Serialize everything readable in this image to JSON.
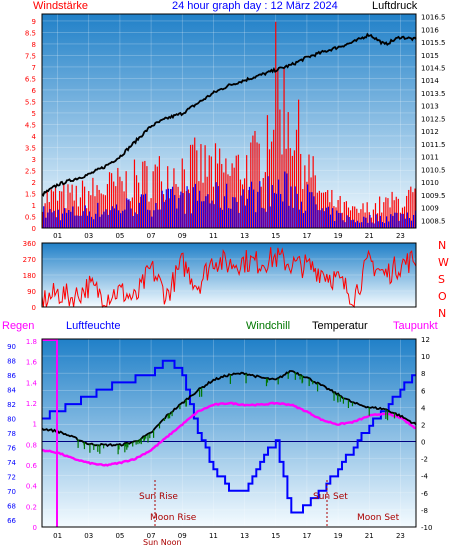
{
  "header": {
    "left_label": "Windstärke",
    "title": "24 hour graph day : 12 März 2024",
    "right_label": "Luftdruck"
  },
  "colors": {
    "red": "#ff0000",
    "blue": "#0000ff",
    "black": "#000000",
    "magenta": "#ff00ff",
    "green": "#007700",
    "plot_top": "#2080c8",
    "plot_bottom": "#f4fbff"
  },
  "labels": {
    "regen": "Regen",
    "luftfeuchte": "Luftfeuchte",
    "windchill": "Windchill",
    "temperatur": "Temperatur",
    "taupunkt": "Taupunkt",
    "sun_rise": "Sun Rise",
    "sun_set": "Sun Set",
    "moon_rise": "Moon Rise",
    "moon_set": "Moon Set",
    "sun_noon": "Sun Noon",
    "compass": [
      "N",
      "W",
      "S",
      "O",
      "N"
    ]
  },
  "chart_data": [
    {
      "type": "bar",
      "name": "wind",
      "y_left_ticks": [
        "0",
        "0.5",
        "1",
        "1.5",
        "2",
        "2.5",
        "3",
        "3.5",
        "4",
        "4.5",
        "5",
        "5.5",
        "6",
        "6.5",
        "7",
        "7.5",
        "8",
        "8.5",
        "9"
      ],
      "y_right_ticks": [
        "1008.5",
        "1009",
        "1009.5",
        "1010",
        "1010.5",
        "1011",
        "1011.5",
        "1012",
        "1012.5",
        "1013",
        "1013.5",
        "1014",
        "1014.5",
        "1015",
        "1015.5",
        "1016",
        "1016.5"
      ],
      "x_ticks": [
        "01",
        "03",
        "05",
        "07",
        "09",
        "11",
        "13",
        "15",
        "17",
        "19",
        "21",
        "23"
      ],
      "ylim": [
        0,
        9.3
      ],
      "y2lim": [
        1008.2,
        1016.6
      ],
      "gust_profile": [
        [
          0,
          2
        ],
        [
          2,
          2
        ],
        [
          4,
          2.5
        ],
        [
          6,
          3
        ],
        [
          8,
          3.5
        ],
        [
          10,
          4
        ],
        [
          12,
          3.5
        ],
        [
          14,
          4.5
        ],
        [
          15,
          9
        ],
        [
          16,
          7
        ],
        [
          17,
          4
        ],
        [
          18,
          2
        ],
        [
          19,
          1.5
        ],
        [
          20,
          1
        ],
        [
          22,
          1.5
        ],
        [
          24,
          2
        ]
      ],
      "mean_profile": [
        [
          0,
          1
        ],
        [
          2,
          1
        ],
        [
          4,
          1.2
        ],
        [
          6,
          1.5
        ],
        [
          8,
          1.8
        ],
        [
          10,
          2
        ],
        [
          12,
          2
        ],
        [
          14,
          2.2
        ],
        [
          15,
          2.5
        ],
        [
          16,
          2.5
        ],
        [
          17,
          2
        ],
        [
          18,
          1
        ],
        [
          19,
          0.8
        ],
        [
          20,
          0.5
        ],
        [
          22,
          0.7
        ],
        [
          24,
          1
        ]
      ],
      "pressure_profile": [
        [
          0,
          1009.5
        ],
        [
          1,
          1009.9
        ],
        [
          2,
          1010.1
        ],
        [
          3,
          1010.3
        ],
        [
          4,
          1010.6
        ],
        [
          5,
          1011.0
        ],
        [
          6,
          1011.6
        ],
        [
          7,
          1012.2
        ],
        [
          8,
          1012.5
        ],
        [
          9,
          1012.7
        ],
        [
          10,
          1013.1
        ],
        [
          11,
          1013.5
        ],
        [
          12,
          1013.8
        ],
        [
          13,
          1014.0
        ],
        [
          14,
          1014.2
        ],
        [
          15,
          1014.4
        ],
        [
          16,
          1014.6
        ],
        [
          17,
          1014.9
        ],
        [
          18,
          1015.1
        ],
        [
          19,
          1015.3
        ],
        [
          20,
          1015.5
        ],
        [
          21,
          1015.8
        ],
        [
          22,
          1015.4
        ],
        [
          23,
          1015.7
        ],
        [
          24,
          1015.6
        ]
      ]
    },
    {
      "type": "scatter",
      "name": "wind_direction",
      "y_ticks": [
        "0",
        "90",
        "180",
        "270",
        "360"
      ],
      "ylim": [
        0,
        360
      ],
      "direction_profile": [
        [
          0,
          30
        ],
        [
          1,
          80
        ],
        [
          2,
          50
        ],
        [
          3,
          120
        ],
        [
          4,
          60
        ],
        [
          5,
          90
        ],
        [
          6,
          40
        ],
        [
          7,
          220
        ],
        [
          8,
          60
        ],
        [
          9,
          250
        ],
        [
          10,
          120
        ],
        [
          11,
          270
        ],
        [
          12,
          240
        ],
        [
          13,
          260
        ],
        [
          14,
          250
        ],
        [
          15,
          280
        ],
        [
          16,
          240
        ],
        [
          17,
          230
        ],
        [
          18,
          200
        ],
        [
          19,
          150
        ],
        [
          20,
          60
        ],
        [
          21,
          260
        ],
        [
          22,
          180
        ],
        [
          23,
          240
        ],
        [
          24,
          270
        ]
      ]
    },
    {
      "type": "line",
      "name": "temperature_humidity",
      "y_left_ticks": [
        "66",
        "68",
        "70",
        "72",
        "74",
        "76",
        "78",
        "80",
        "82",
        "84",
        "86",
        "88",
        "90"
      ],
      "y_rain_ticks": [
        "0",
        "0.2",
        "0.4",
        "0.6",
        "0.8",
        "1",
        "1.2",
        "1.4",
        "1.6",
        "1.8"
      ],
      "y_right_ticks": [
        "-10",
        "-8",
        "-6",
        "-4",
        "-2",
        "0",
        "2",
        "4",
        "6",
        "8",
        "10",
        "12"
      ],
      "x_ticks": [
        "01",
        "03",
        "05",
        "07",
        "09",
        "11",
        "13",
        "15",
        "17",
        "19",
        "21",
        "23"
      ],
      "temp_lim": [
        -10,
        12
      ],
      "humidity_lim": [
        65,
        91
      ],
      "temperature": [
        [
          0,
          1.5
        ],
        [
          1,
          1.2
        ],
        [
          2,
          0.5
        ],
        [
          3,
          -0.3
        ],
        [
          4,
          -0.4
        ],
        [
          5,
          -0.4
        ],
        [
          6,
          0
        ],
        [
          7,
          1
        ],
        [
          8,
          3
        ],
        [
          9,
          4.5
        ],
        [
          10,
          6
        ],
        [
          11,
          7.2
        ],
        [
          12,
          7.8
        ],
        [
          13,
          8
        ],
        [
          14,
          7.5
        ],
        [
          15,
          7.2
        ],
        [
          16,
          8.3
        ],
        [
          17,
          7.5
        ],
        [
          18,
          6.5
        ],
        [
          19,
          5.5
        ],
        [
          20,
          4.5
        ],
        [
          21,
          4
        ],
        [
          22,
          3.8
        ],
        [
          23,
          3
        ],
        [
          24,
          2
        ]
      ],
      "dewpoint": [
        [
          0,
          -1
        ],
        [
          1,
          -1.3
        ],
        [
          2,
          -2
        ],
        [
          3,
          -2.5
        ],
        [
          4,
          -2.8
        ],
        [
          5,
          -2.5
        ],
        [
          6,
          -2
        ],
        [
          7,
          -1
        ],
        [
          8,
          0.5
        ],
        [
          9,
          2
        ],
        [
          10,
          3.5
        ],
        [
          11,
          4.3
        ],
        [
          12,
          4.5
        ],
        [
          13,
          4.3
        ],
        [
          14,
          4.3
        ],
        [
          15,
          4.5
        ],
        [
          16,
          4.3
        ],
        [
          17,
          3.5
        ],
        [
          18,
          2.5
        ],
        [
          19,
          2
        ],
        [
          20,
          2.3
        ],
        [
          21,
          3
        ],
        [
          22,
          3.3
        ],
        [
          23,
          2.8
        ],
        [
          24,
          1.5
        ]
      ],
      "humidity": [
        [
          0,
          80
        ],
        [
          1,
          81
        ],
        [
          2,
          82
        ],
        [
          3,
          83
        ],
        [
          4,
          84
        ],
        [
          5,
          85
        ],
        [
          6,
          85.5
        ],
        [
          7,
          86
        ],
        [
          7.5,
          87
        ],
        [
          8,
          88
        ],
        [
          9,
          86
        ],
        [
          10,
          78
        ],
        [
          11,
          73
        ],
        [
          12,
          70
        ],
        [
          13,
          70
        ],
        [
          14,
          74
        ],
        [
          15,
          77
        ],
        [
          16,
          66.5
        ],
        [
          17,
          68
        ],
        [
          18,
          70
        ],
        [
          19,
          73
        ],
        [
          20,
          76
        ],
        [
          21,
          79
        ],
        [
          22,
          81
        ],
        [
          23,
          84
        ],
        [
          24,
          86
        ]
      ]
    }
  ]
}
